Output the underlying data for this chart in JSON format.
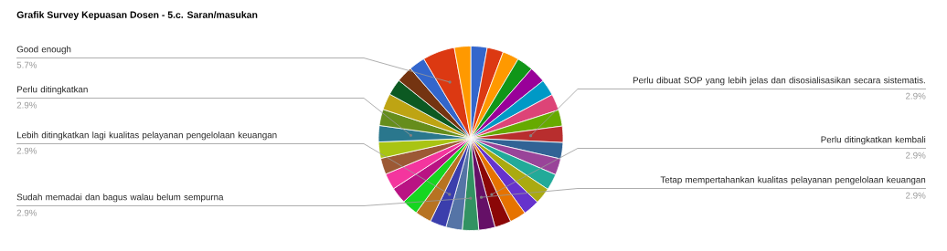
{
  "chart_data": {
    "type": "pie",
    "title": "Grafik Survey Kepuasan Dosen - 5.c. Saran/masukan",
    "categories": [
      null,
      null,
      null,
      null,
      null,
      null,
      null,
      null,
      "Perlu dibuat SOP yang lebih jelas dan disosialisasikan secara sistematis.",
      null,
      null,
      null,
      null,
      null,
      null,
      "Perlu ditingkatkan kembali",
      "Tetap mempertahankan kualitas pelayanan pengelolaan keuangan",
      "Sudah memadai dan bagus walau belum sempurna",
      null,
      "Lebih ditingkatkan lagi kualitas pelayanan pengelolaan keuangan",
      null,
      null,
      null,
      null,
      null,
      null,
      "Perlu ditingkatkan",
      null,
      null,
      null,
      null,
      null,
      "Good enough",
      null
    ],
    "values": [
      2.9,
      2.9,
      2.9,
      2.9,
      2.9,
      2.9,
      2.9,
      2.9,
      2.9,
      2.9,
      2.9,
      2.9,
      2.9,
      2.9,
      2.9,
      2.9,
      2.9,
      2.9,
      2.9,
      2.9,
      2.9,
      2.9,
      2.9,
      2.9,
      2.9,
      2.9,
      2.9,
      2.9,
      2.9,
      2.9,
      2.9,
      2.9,
      5.7,
      2.9
    ],
    "value_labels": [
      null,
      null,
      null,
      null,
      null,
      null,
      null,
      null,
      "2.9%",
      null,
      null,
      null,
      null,
      null,
      null,
      "2.9%",
      "2.9%",
      "2.9%",
      null,
      "2.9%",
      null,
      null,
      null,
      null,
      null,
      null,
      "2.9%",
      null,
      null,
      null,
      null,
      null,
      "5.7%",
      null
    ],
    "colors": [
      "#3366cc",
      "#dc3912",
      "#ff9900",
      "#109618",
      "#990099",
      "#0099c6",
      "#dd4477",
      "#66aa00",
      "#b82e2e",
      "#316395",
      "#994499",
      "#22aa99",
      "#aaaa11",
      "#6633cc",
      "#e67300",
      "#8b0707",
      "#651067",
      "#329262",
      "#5574a6",
      "#3b3eac",
      "#b77322",
      "#16d620",
      "#b91383",
      "#f4359e",
      "#9c5935",
      "#a9c413",
      "#2a778d",
      "#668d1c",
      "#bea413",
      "#0c5922",
      "#743411",
      "#3366cc",
      "#dc3912",
      "#ff9900"
    ]
  }
}
